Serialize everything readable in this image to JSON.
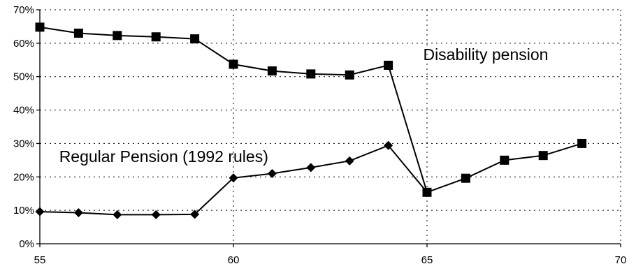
{
  "chart_data": {
    "type": "line",
    "title": "",
    "xlabel": "",
    "ylabel": "",
    "xlim": [
      55,
      70
    ],
    "ylim": [
      0,
      70
    ],
    "x_ticks": [
      "55",
      "60",
      "65",
      "70"
    ],
    "y_ticks": [
      "0%",
      "10%",
      "20%",
      "30%",
      "40%",
      "50%",
      "60%",
      "70%"
    ],
    "grid": true,
    "legend": "none",
    "series": [
      {
        "name": "Disability pension",
        "marker": "square",
        "color": "#000000",
        "x": [
          55,
          56,
          57,
          58,
          59,
          60,
          61,
          62,
          63,
          64,
          65,
          66,
          67,
          68,
          69
        ],
        "values": [
          64.8,
          63.0,
          62.3,
          61.9,
          61.3,
          53.7,
          51.7,
          50.8,
          50.5,
          53.4,
          15.4,
          19.6,
          25.0,
          26.4,
          30.0
        ]
      },
      {
        "name": "Regular Pension (1992 rules)",
        "marker": "diamond",
        "color": "#000000",
        "x": [
          55,
          56,
          57,
          58,
          59,
          60,
          61,
          62,
          63,
          64,
          65
        ],
        "values": [
          9.6,
          9.3,
          8.7,
          8.7,
          8.8,
          19.7,
          21.0,
          22.8,
          24.8,
          29.4,
          15.4
        ]
      }
    ],
    "annotations": [
      {
        "text": "Disability pension",
        "x": 64.9,
        "y": 55.0
      },
      {
        "text": "Regular Pension (1992 rules)",
        "x": 55.5,
        "y": 24.5
      }
    ]
  }
}
